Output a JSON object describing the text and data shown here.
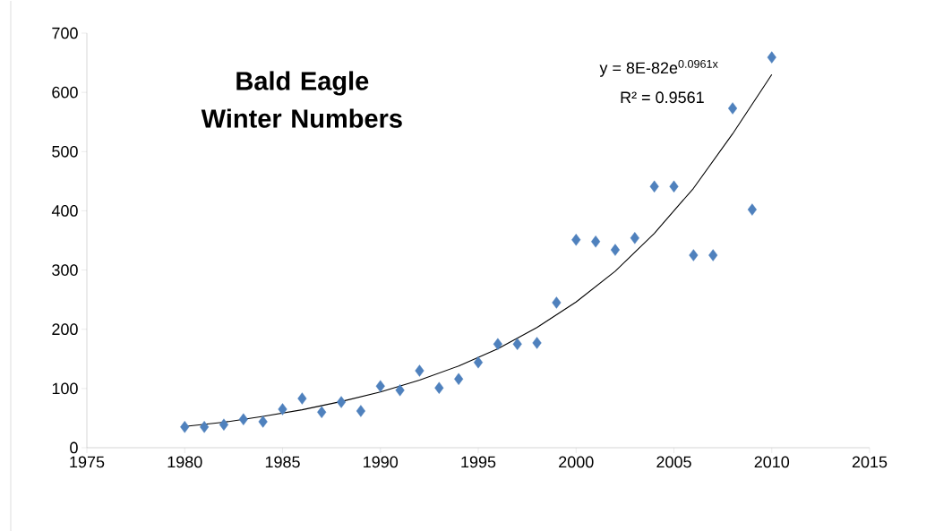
{
  "chart_data": {
    "type": "scatter",
    "title": "Bald Eagle Winter Numbers",
    "marker": "diamond",
    "xlim": [
      1975,
      2015
    ],
    "xticks": [
      1975,
      1980,
      1985,
      1990,
      1995,
      2000,
      2005,
      2010,
      2015
    ],
    "ylim": [
      0,
      700
    ],
    "yticks": [
      0,
      100,
      200,
      300,
      400,
      500,
      600,
      700
    ],
    "grid": false,
    "series": [
      {
        "color": "#4f81bd",
        "x": [
          1980,
          1981,
          1982,
          1983,
          1984,
          1985,
          1986,
          1987,
          1988,
          1989,
          1990,
          1991,
          1992,
          1993,
          1994,
          1995,
          1996,
          1997,
          1998,
          1999,
          2000,
          2001,
          2002,
          2003,
          2004,
          2005,
          2006,
          2007,
          2008,
          2009,
          2010
        ],
        "values": [
          35,
          35,
          39,
          48,
          44,
          65,
          83,
          60,
          77,
          62,
          104,
          97,
          130,
          101,
          116,
          144,
          175,
          175,
          177,
          245,
          351,
          348,
          334,
          354,
          441,
          441,
          325,
          325,
          573,
          402,
          659
        ]
      },
      {
        "type": "line",
        "marker": "none",
        "color": "#000000",
        "x": [
          1980,
          1982,
          1984,
          1986,
          1988,
          1990,
          1992,
          1994,
          1996,
          1998,
          2000,
          2002,
          2004,
          2006,
          2008,
          2010
        ],
        "values": [
          36,
          43,
          53,
          64,
          78,
          94,
          114,
          138,
          167,
          203,
          246,
          298,
          362,
          438,
          530,
          630
        ]
      }
    ],
    "annotations": [
      "y = 8E-82e$^{0.0961x}$",
      "R² = 0.9561"
    ]
  }
}
